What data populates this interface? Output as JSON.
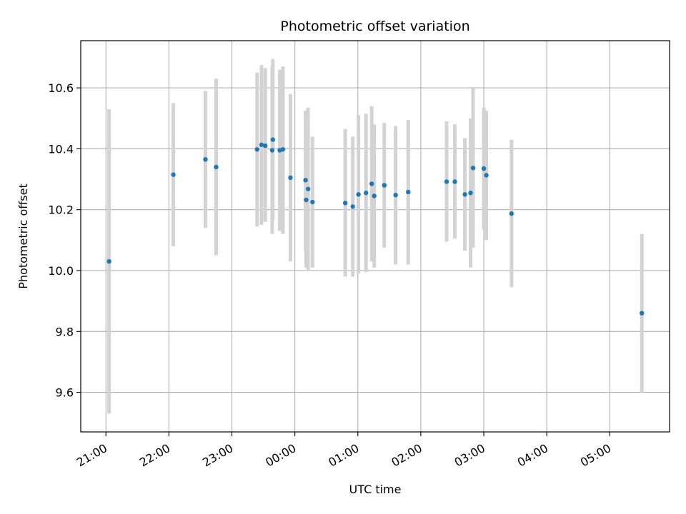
{
  "chart_data": {
    "type": "scatter",
    "title": "Photometric offset variation",
    "xlabel": "UTC time",
    "ylabel": "Photometric offset",
    "x_unit": "hours since 00:00 UTC",
    "xlim": [
      -3.4,
      5.95
    ],
    "ylim": [
      9.47,
      10.755
    ],
    "grid": true,
    "colors": {
      "point": "#1f77b4",
      "errorbar": "#d3d3d3",
      "grid": "#b0b0b0"
    },
    "x_ticks": [
      {
        "value": -3,
        "label": "21:00"
      },
      {
        "value": -2,
        "label": "22:00"
      },
      {
        "value": -1,
        "label": "23:00"
      },
      {
        "value": 0,
        "label": "00:00"
      },
      {
        "value": 1,
        "label": "01:00"
      },
      {
        "value": 2,
        "label": "02:00"
      },
      {
        "value": 3,
        "label": "03:00"
      },
      {
        "value": 4,
        "label": "04:00"
      },
      {
        "value": 5,
        "label": "05:00"
      }
    ],
    "y_ticks": [
      {
        "value": 9.6,
        "label": "9.6"
      },
      {
        "value": 9.8,
        "label": "9.8"
      },
      {
        "value": 10.0,
        "label": "10.0"
      },
      {
        "value": 10.2,
        "label": "10.2"
      },
      {
        "value": 10.4,
        "label": "10.4"
      },
      {
        "value": 10.6,
        "label": "10.6"
      }
    ],
    "points": [
      {
        "x": -2.95,
        "y": 10.03,
        "lo": 9.53,
        "hi": 10.53
      },
      {
        "x": -1.93,
        "y": 10.315,
        "lo": 10.08,
        "hi": 10.55
      },
      {
        "x": -1.42,
        "y": 10.365,
        "lo": 10.14,
        "hi": 10.59
      },
      {
        "x": -1.25,
        "y": 10.34,
        "lo": 10.05,
        "hi": 10.63
      },
      {
        "x": -0.6,
        "y": 10.398,
        "lo": 10.145,
        "hi": 10.65
      },
      {
        "x": -0.53,
        "y": 10.413,
        "lo": 10.15,
        "hi": 10.675
      },
      {
        "x": -0.47,
        "y": 10.41,
        "lo": 10.16,
        "hi": 10.665
      },
      {
        "x": -0.36,
        "y": 10.395,
        "lo": 10.12,
        "hi": 10.67
      },
      {
        "x": -0.35,
        "y": 10.43,
        "lo": 10.165,
        "hi": 10.695
      },
      {
        "x": -0.24,
        "y": 10.395,
        "lo": 10.13,
        "hi": 10.66
      },
      {
        "x": -0.19,
        "y": 10.398,
        "lo": 10.12,
        "hi": 10.67
      },
      {
        "x": -0.07,
        "y": 10.305,
        "lo": 10.03,
        "hi": 10.58
      },
      {
        "x": 0.17,
        "y": 10.297,
        "lo": 10.065,
        "hi": 10.525
      },
      {
        "x": 0.18,
        "y": 10.232,
        "lo": 10.01,
        "hi": 10.455
      },
      {
        "x": 0.21,
        "y": 10.268,
        "lo": 10.0,
        "hi": 10.535
      },
      {
        "x": 0.28,
        "y": 10.225,
        "lo": 10.01,
        "hi": 10.44
      },
      {
        "x": 0.8,
        "y": 10.222,
        "lo": 9.98,
        "hi": 10.465
      },
      {
        "x": 0.92,
        "y": 10.21,
        "lo": 9.98,
        "hi": 10.44
      },
      {
        "x": 1.01,
        "y": 10.25,
        "lo": 9.99,
        "hi": 10.51
      },
      {
        "x": 1.13,
        "y": 10.255,
        "lo": 9.995,
        "hi": 10.515
      },
      {
        "x": 1.22,
        "y": 10.285,
        "lo": 10.03,
        "hi": 10.54
      },
      {
        "x": 1.26,
        "y": 10.245,
        "lo": 10.01,
        "hi": 10.48
      },
      {
        "x": 1.42,
        "y": 10.28,
        "lo": 10.075,
        "hi": 10.485
      },
      {
        "x": 1.6,
        "y": 10.248,
        "lo": 10.02,
        "hi": 10.475
      },
      {
        "x": 1.8,
        "y": 10.258,
        "lo": 10.02,
        "hi": 10.495
      },
      {
        "x": 2.41,
        "y": 10.292,
        "lo": 10.095,
        "hi": 10.49
      },
      {
        "x": 2.54,
        "y": 10.292,
        "lo": 10.105,
        "hi": 10.48
      },
      {
        "x": 2.7,
        "y": 10.25,
        "lo": 10.065,
        "hi": 10.435
      },
      {
        "x": 2.79,
        "y": 10.255,
        "lo": 10.01,
        "hi": 10.5
      },
      {
        "x": 2.83,
        "y": 10.337,
        "lo": 10.075,
        "hi": 10.6
      },
      {
        "x": 3.0,
        "y": 10.335,
        "lo": 10.135,
        "hi": 10.535
      },
      {
        "x": 3.04,
        "y": 10.313,
        "lo": 10.1,
        "hi": 10.525
      },
      {
        "x": 3.44,
        "y": 10.187,
        "lo": 9.945,
        "hi": 10.43
      },
      {
        "x": 5.51,
        "y": 9.86,
        "lo": 9.6,
        "hi": 10.12
      }
    ]
  }
}
